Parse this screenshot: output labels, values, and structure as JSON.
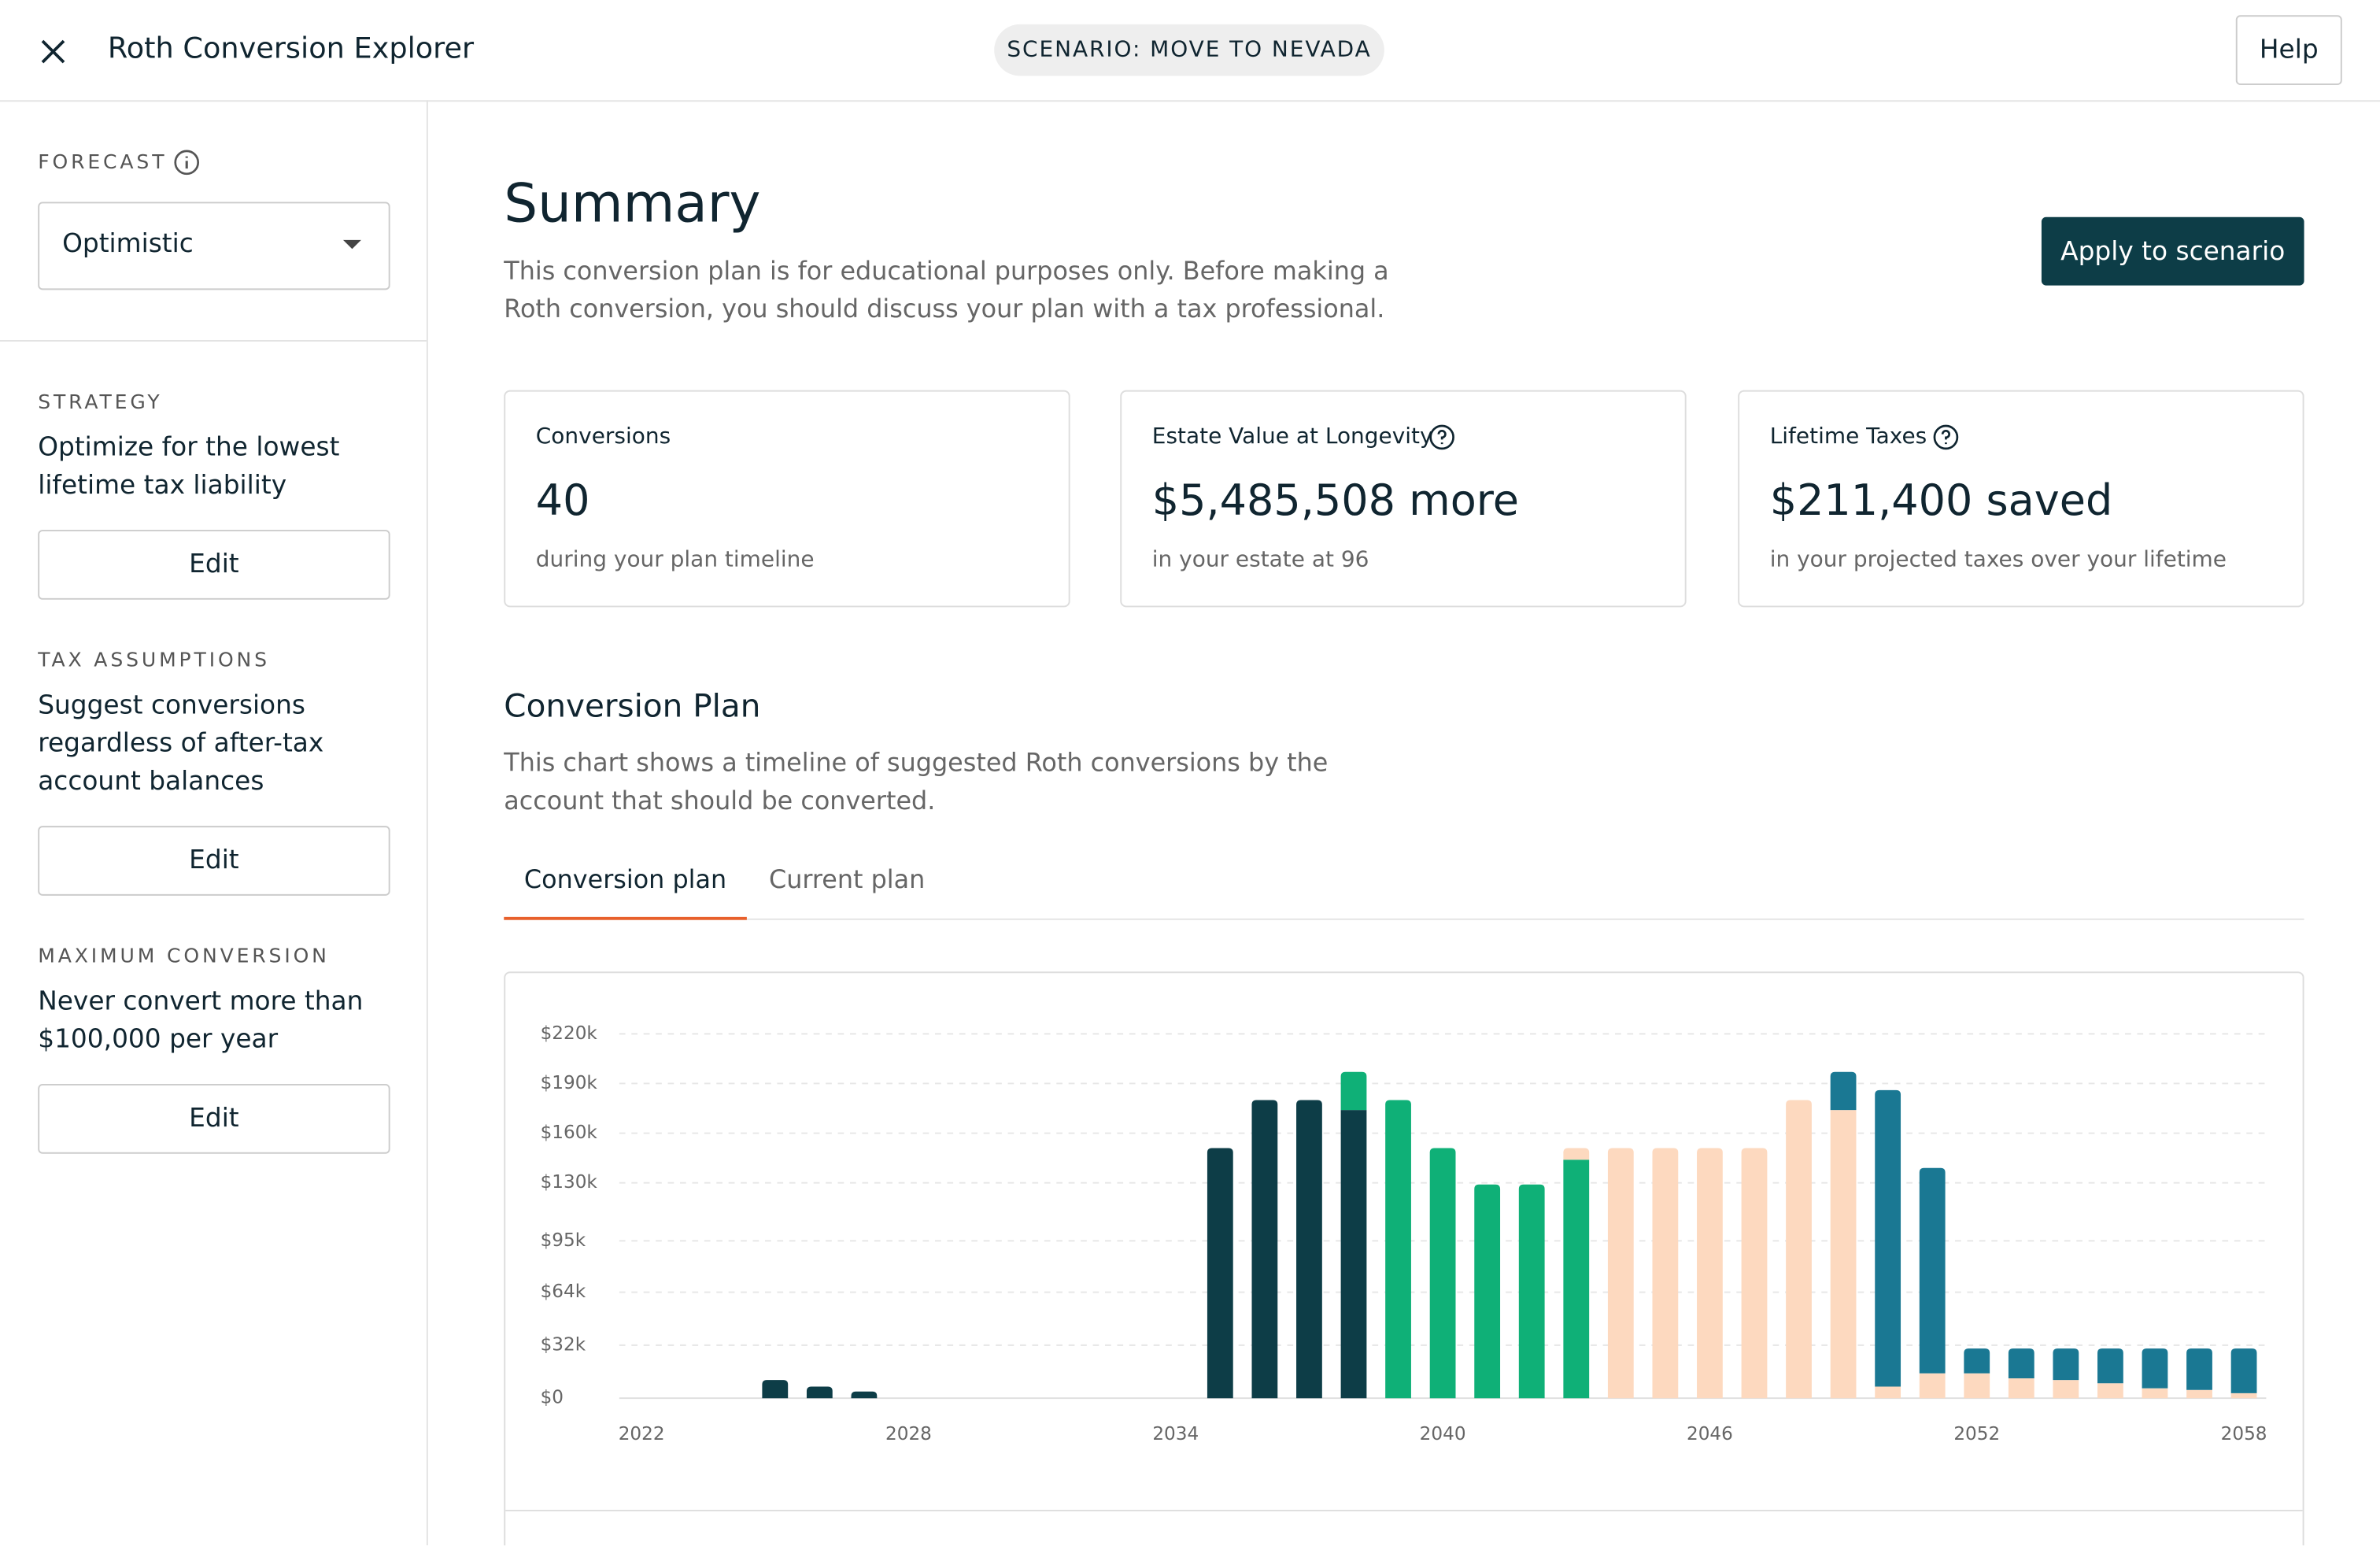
{
  "header": {
    "title": "Roth Conversion Explorer",
    "scenario": "SCENARIO: MOVE TO NEVADA",
    "help": "Help"
  },
  "sidebar": {
    "forecast_label": "FORECAST",
    "forecast_value": "Optimistic",
    "sections": [
      {
        "label": "STRATEGY",
        "text": "Optimize for the lowest lifetime tax liability",
        "button": "Edit"
      },
      {
        "label": "TAX ASSUMPTIONS",
        "text": "Suggest conversions regardless of after-tax account balances",
        "button": "Edit"
      },
      {
        "label": "MAXIMUM CONVERSION",
        "text": "Never convert more than $100,000 per year",
        "button": "Edit"
      }
    ]
  },
  "summary": {
    "title": "Summary",
    "text": "This conversion plan is for educational purposes only. Before making a Roth conversion, you should discuss your plan with a tax professional.",
    "button": "Apply to scenario",
    "cards": [
      {
        "label": "Conversions",
        "value": "40",
        "note": "during your plan timeline"
      },
      {
        "label": "Estate Value at Longevity",
        "value": "$5,485,508 more",
        "note": "in your estate at 96"
      },
      {
        "label": "Lifetime Taxes",
        "value": "$211,400 saved",
        "note": "in your projected taxes over your lifetime"
      }
    ]
  },
  "plan": {
    "title": "Conversion Plan",
    "text": "This chart shows a timeline of suggested Roth conversions by the account that should be converted.",
    "tabs": [
      "Conversion plan",
      "Current plan"
    ]
  },
  "chart_data": {
    "type": "stacked-bar",
    "categories": [
      "2022",
      null,
      null,
      null,
      null,
      null,
      "2028",
      null,
      null,
      null,
      null,
      null,
      "2034",
      null,
      null,
      null,
      null,
      null,
      "2040",
      null,
      null,
      null,
      null,
      null,
      "2046",
      null,
      null,
      null,
      null,
      null,
      "2052",
      null,
      null,
      null,
      null,
      null,
      "2058"
    ],
    "series": [
      {
        "color": "#0d3d47",
        "values": [
          null,
          null,
          null,
          11000,
          7000,
          4000,
          null,
          null,
          null,
          null,
          null,
          null,
          null,
          151000,
          180000,
          180000,
          174000,
          null,
          null,
          null,
          null,
          null,
          null,
          null,
          null,
          null,
          null,
          null,
          null,
          null,
          null,
          null,
          null,
          null,
          null,
          null,
          null
        ]
      },
      {
        "color": "#0fb077",
        "values": [
          null,
          null,
          null,
          null,
          null,
          null,
          null,
          null,
          null,
          null,
          null,
          null,
          null,
          null,
          null,
          null,
          23000,
          180000,
          151000,
          129000,
          129000,
          144000,
          null,
          null,
          null,
          null,
          null,
          null,
          null,
          null,
          null,
          null,
          null,
          null,
          null,
          null,
          null
        ]
      },
      {
        "color": "#fdd9bf",
        "values": [
          null,
          null,
          null,
          null,
          null,
          null,
          null,
          null,
          null,
          null,
          null,
          null,
          null,
          null,
          null,
          null,
          null,
          null,
          null,
          null,
          null,
          7000,
          151000,
          151000,
          151000,
          151000,
          180000,
          174000,
          7000,
          15000,
          15000,
          12000,
          11000,
          9000,
          6000,
          5000,
          3000
        ]
      },
      {
        "color": "#1a7893",
        "values": [
          null,
          null,
          null,
          null,
          null,
          null,
          null,
          null,
          null,
          null,
          null,
          null,
          null,
          null,
          null,
          null,
          null,
          null,
          null,
          null,
          null,
          null,
          null,
          null,
          null,
          null,
          null,
          23000,
          179000,
          124000,
          15000,
          18000,
          19000,
          21000,
          24000,
          25000,
          27000
        ]
      }
    ],
    "ylim": [
      0,
      220000
    ],
    "yticks": [
      {
        "value": 0,
        "label": "$0"
      },
      {
        "value": 32000,
        "label": "$32k"
      },
      {
        "value": 64000,
        "label": "$64k"
      },
      {
        "value": 95000,
        "label": "$95k"
      },
      {
        "value": 130000,
        "label": "$130k"
      },
      {
        "value": 160000,
        "label": "$160k"
      },
      {
        "value": 190000,
        "label": "$190k"
      },
      {
        "value": 220000,
        "label": "$220k"
      }
    ],
    "grid": true
  }
}
